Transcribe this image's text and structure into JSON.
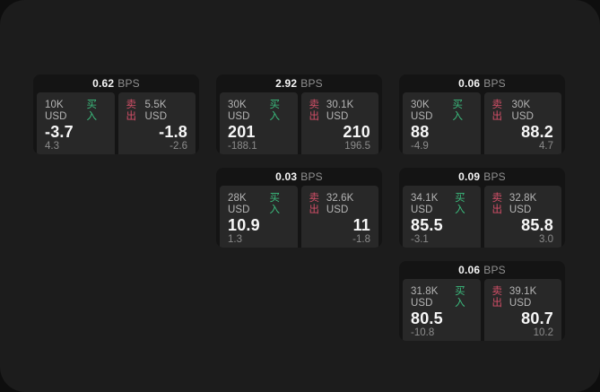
{
  "labels": {
    "bps_suffix": "BPS",
    "buy_label": "买入",
    "sell_label": "卖出"
  },
  "colors": {
    "buy": "#3bbd7e",
    "sell": "#d34f68",
    "panel_background": "#1c1c1c",
    "card_background": "#141414",
    "tile_background": "#282828"
  },
  "cards": [
    {
      "bps": "0.62",
      "grid": {
        "row": 1,
        "col": 1
      },
      "buy": {
        "amount": "10K USD",
        "price": "-3.7",
        "delta": "4.3"
      },
      "sell": {
        "amount": "5.5K USD",
        "price": "-1.8",
        "delta": "-2.6"
      }
    },
    {
      "bps": "2.92",
      "grid": {
        "row": 1,
        "col": 2
      },
      "buy": {
        "amount": "30K USD",
        "price": "201",
        "delta": "-188.1"
      },
      "sell": {
        "amount": "30.1K USD",
        "price": "210",
        "delta": "196.5"
      }
    },
    {
      "bps": "0.06",
      "grid": {
        "row": 1,
        "col": 3
      },
      "buy": {
        "amount": "30K USD",
        "price": "88",
        "delta": "-4.9"
      },
      "sell": {
        "amount": "30K USD",
        "price": "88.2",
        "delta": "4.7"
      }
    },
    {
      "bps": "0.03",
      "grid": {
        "row": 2,
        "col": 2
      },
      "buy": {
        "amount": "28K USD",
        "price": "10.9",
        "delta": "1.3"
      },
      "sell": {
        "amount": "32.6K USD",
        "price": "11",
        "delta": "-1.8"
      }
    },
    {
      "bps": "0.09",
      "grid": {
        "row": 2,
        "col": 3
      },
      "buy": {
        "amount": "34.1K USD",
        "price": "85.5",
        "delta": "-3.1"
      },
      "sell": {
        "amount": "32.8K USD",
        "price": "85.8",
        "delta": "3.0"
      }
    },
    {
      "bps": "0.06",
      "grid": {
        "row": 3,
        "col": 3
      },
      "buy": {
        "amount": "31.8K USD",
        "price": "80.5",
        "delta": "-10.8"
      },
      "sell": {
        "amount": "39.1K USD",
        "price": "80.7",
        "delta": "10.2"
      }
    }
  ]
}
